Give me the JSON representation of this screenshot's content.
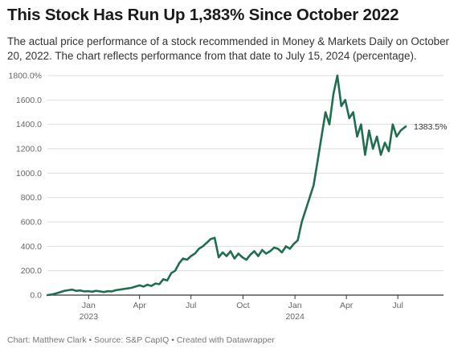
{
  "header": {
    "title": "This Stock Has Run Up 1,383% Since October 2022",
    "subtitle": "The actual price performance of a stock recommended in Money & Markets Daily on October 20, 2022. The chart reflects performance from that date to July 15, 2024 (percentage)."
  },
  "footer": {
    "credit": "Chart: Matthew Clark • Source: S&P CapIQ • Created with Datawrapper"
  },
  "colors": {
    "line": "#1f6f4f",
    "grid": "#dddddd",
    "axis": "#333333"
  },
  "chart_data": {
    "type": "line",
    "title": "This Stock Has Run Up 1,383% Since October 2022",
    "ylim": [
      0,
      1800
    ],
    "y_ticks": [
      0,
      200,
      400,
      600,
      800,
      1000,
      1200,
      1400,
      1600,
      1800
    ],
    "y_tick_labels": [
      "0.0",
      "200.0",
      "400.0",
      "600.0",
      "800.0",
      "1000.0",
      "1200.0",
      "1400.0",
      "1600.0",
      "1800.0%"
    ],
    "x_range": [
      "2022-10-20",
      "2024-07-15"
    ],
    "x_ticks": [
      {
        "date": "2023-01-01",
        "label": "Jan",
        "sublabel": "2023"
      },
      {
        "date": "2023-04-01",
        "label": "Apr",
        "sublabel": ""
      },
      {
        "date": "2023-07-01",
        "label": "Jul",
        "sublabel": ""
      },
      {
        "date": "2023-10-01",
        "label": "Oct",
        "sublabel": ""
      },
      {
        "date": "2024-01-01",
        "label": "Jan",
        "sublabel": "2024"
      },
      {
        "date": "2024-04-01",
        "label": "Apr",
        "sublabel": ""
      },
      {
        "date": "2024-07-01",
        "label": "Jul",
        "sublabel": ""
      }
    ],
    "grid": true,
    "end_label": "1383.5%",
    "series": [
      {
        "points": [
          [
            "2022-10-20",
            0
          ],
          [
            "2022-10-28",
            5
          ],
          [
            "2022-11-05",
            15
          ],
          [
            "2022-11-12",
            25
          ],
          [
            "2022-11-19",
            35
          ],
          [
            "2022-11-26",
            40
          ],
          [
            "2022-12-03",
            45
          ],
          [
            "2022-12-10",
            35
          ],
          [
            "2022-12-17",
            38
          ],
          [
            "2022-12-24",
            30
          ],
          [
            "2022-12-31",
            32
          ],
          [
            "2023-01-07",
            28
          ],
          [
            "2023-01-14",
            35
          ],
          [
            "2023-01-21",
            30
          ],
          [
            "2023-01-28",
            25
          ],
          [
            "2023-02-04",
            32
          ],
          [
            "2023-02-11",
            30
          ],
          [
            "2023-02-18",
            40
          ],
          [
            "2023-02-25",
            45
          ],
          [
            "2023-03-04",
            50
          ],
          [
            "2023-03-11",
            55
          ],
          [
            "2023-03-18",
            60
          ],
          [
            "2023-03-25",
            70
          ],
          [
            "2023-04-01",
            80
          ],
          [
            "2023-04-08",
            70
          ],
          [
            "2023-04-15",
            85
          ],
          [
            "2023-04-22",
            75
          ],
          [
            "2023-04-29",
            95
          ],
          [
            "2023-05-06",
            90
          ],
          [
            "2023-05-13",
            130
          ],
          [
            "2023-05-20",
            120
          ],
          [
            "2023-05-27",
            180
          ],
          [
            "2023-06-03",
            200
          ],
          [
            "2023-06-10",
            260
          ],
          [
            "2023-06-17",
            300
          ],
          [
            "2023-06-24",
            290
          ],
          [
            "2023-07-01",
            320
          ],
          [
            "2023-07-08",
            340
          ],
          [
            "2023-07-15",
            380
          ],
          [
            "2023-07-22",
            400
          ],
          [
            "2023-07-29",
            430
          ],
          [
            "2023-08-05",
            460
          ],
          [
            "2023-08-12",
            470
          ],
          [
            "2023-08-19",
            310
          ],
          [
            "2023-08-26",
            350
          ],
          [
            "2023-09-02",
            320
          ],
          [
            "2023-09-09",
            360
          ],
          [
            "2023-09-16",
            300
          ],
          [
            "2023-09-23",
            340
          ],
          [
            "2023-09-30",
            310
          ],
          [
            "2023-10-07",
            290
          ],
          [
            "2023-10-14",
            330
          ],
          [
            "2023-10-21",
            360
          ],
          [
            "2023-10-28",
            320
          ],
          [
            "2023-11-04",
            370
          ],
          [
            "2023-11-11",
            340
          ],
          [
            "2023-11-18",
            360
          ],
          [
            "2023-11-25",
            390
          ],
          [
            "2023-12-02",
            380
          ],
          [
            "2023-12-09",
            350
          ],
          [
            "2023-12-16",
            400
          ],
          [
            "2023-12-23",
            380
          ],
          [
            "2023-12-30",
            420
          ],
          [
            "2024-01-06",
            450
          ],
          [
            "2024-01-13",
            600
          ],
          [
            "2024-01-20",
            700
          ],
          [
            "2024-01-27",
            800
          ],
          [
            "2024-02-03",
            900
          ],
          [
            "2024-02-10",
            1100
          ],
          [
            "2024-02-17",
            1300
          ],
          [
            "2024-02-24",
            1500
          ],
          [
            "2024-03-02",
            1400
          ],
          [
            "2024-03-09",
            1650
          ],
          [
            "2024-03-16",
            1800
          ],
          [
            "2024-03-23",
            1550
          ],
          [
            "2024-03-30",
            1600
          ],
          [
            "2024-04-06",
            1450
          ],
          [
            "2024-04-13",
            1500
          ],
          [
            "2024-04-20",
            1300
          ],
          [
            "2024-04-27",
            1400
          ],
          [
            "2024-05-04",
            1150
          ],
          [
            "2024-05-11",
            1350
          ],
          [
            "2024-05-18",
            1200
          ],
          [
            "2024-05-25",
            1300
          ],
          [
            "2024-06-01",
            1150
          ],
          [
            "2024-06-08",
            1250
          ],
          [
            "2024-06-15",
            1180
          ],
          [
            "2024-06-22",
            1400
          ],
          [
            "2024-06-29",
            1300
          ],
          [
            "2024-07-06",
            1350
          ],
          [
            "2024-07-15",
            1383.5
          ]
        ]
      }
    ]
  }
}
